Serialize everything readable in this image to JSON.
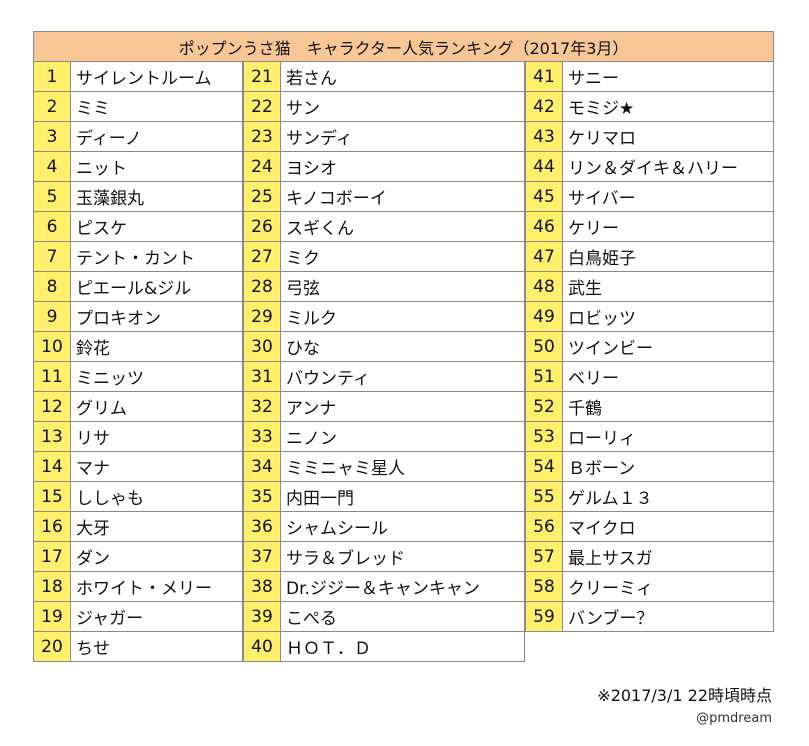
{
  "title": "ポップンうさ猫　キャラクター人気ランキング（2017年3月）",
  "rankings": [
    {
      "rank": "1",
      "name": "サイレントルーム"
    },
    {
      "rank": "2",
      "name": "ミミ"
    },
    {
      "rank": "3",
      "name": "ディーノ"
    },
    {
      "rank": "4",
      "name": "ニット"
    },
    {
      "rank": "5",
      "name": "玉藻銀丸"
    },
    {
      "rank": "6",
      "name": "ピスケ"
    },
    {
      "rank": "7",
      "name": "テント・カント"
    },
    {
      "rank": "8",
      "name": "ピエール&ジル"
    },
    {
      "rank": "9",
      "name": "プロキオン"
    },
    {
      "rank": "10",
      "name": "鈴花"
    },
    {
      "rank": "11",
      "name": "ミニッツ"
    },
    {
      "rank": "12",
      "name": "グリム"
    },
    {
      "rank": "13",
      "name": "リサ"
    },
    {
      "rank": "14",
      "name": "マナ"
    },
    {
      "rank": "15",
      "name": "ししゃも"
    },
    {
      "rank": "16",
      "name": "大牙"
    },
    {
      "rank": "17",
      "name": "ダン"
    },
    {
      "rank": "18",
      "name": "ホワイト・メリー"
    },
    {
      "rank": "19",
      "name": "ジャガー"
    },
    {
      "rank": "20",
      "name": "ちせ"
    },
    {
      "rank": "21",
      "name": "若さん"
    },
    {
      "rank": "22",
      "name": "サン"
    },
    {
      "rank": "23",
      "name": "サンディ"
    },
    {
      "rank": "24",
      "name": "ヨシオ"
    },
    {
      "rank": "25",
      "name": "キノコボーイ"
    },
    {
      "rank": "26",
      "name": "スギくん"
    },
    {
      "rank": "27",
      "name": "ミク"
    },
    {
      "rank": "28",
      "name": "弓弦"
    },
    {
      "rank": "29",
      "name": "ミルク"
    },
    {
      "rank": "30",
      "name": "ひな"
    },
    {
      "rank": "31",
      "name": "バウンティ"
    },
    {
      "rank": "32",
      "name": "アンナ"
    },
    {
      "rank": "33",
      "name": "ニノン"
    },
    {
      "rank": "34",
      "name": "ミミニャミ星人"
    },
    {
      "rank": "35",
      "name": "内田一門"
    },
    {
      "rank": "36",
      "name": "シャムシール"
    },
    {
      "rank": "37",
      "name": "サラ＆ブレッド"
    },
    {
      "rank": "38",
      "name": "Dr.ジジー＆キャンキャン"
    },
    {
      "rank": "39",
      "name": "こぺる"
    },
    {
      "rank": "40",
      "name": "ＨＯＴ．Ｄ"
    },
    {
      "rank": "41",
      "name": "サニー"
    },
    {
      "rank": "42",
      "name": "モミジ★"
    },
    {
      "rank": "43",
      "name": "ケリマロ"
    },
    {
      "rank": "44",
      "name": "リン＆ダイキ＆ハリー"
    },
    {
      "rank": "45",
      "name": "サイバー"
    },
    {
      "rank": "46",
      "name": "ケリー"
    },
    {
      "rank": "47",
      "name": "白鳥姫子"
    },
    {
      "rank": "48",
      "name": "武生"
    },
    {
      "rank": "49",
      "name": "ロビッツ"
    },
    {
      "rank": "50",
      "name": "ツインビー"
    },
    {
      "rank": "51",
      "name": "ベリー"
    },
    {
      "rank": "52",
      "name": "千鶴"
    },
    {
      "rank": "53",
      "name": "ローリィ"
    },
    {
      "rank": "54",
      "name": "Ｂボーン"
    },
    {
      "rank": "55",
      "name": "ゲルム１３"
    },
    {
      "rank": "56",
      "name": "マイクロ"
    },
    {
      "rank": "57",
      "name": "最上サスガ"
    },
    {
      "rank": "58",
      "name": "クリーミィ"
    },
    {
      "rank": "59",
      "name": "バンブー？"
    }
  ],
  "note": "※2017/3/1 22時頃時点",
  "credit": "@pmdream",
  "colors": {
    "header_bg": "#f9c796",
    "rank_bg": "#ffef6a",
    "border": "#8a8a8a"
  }
}
